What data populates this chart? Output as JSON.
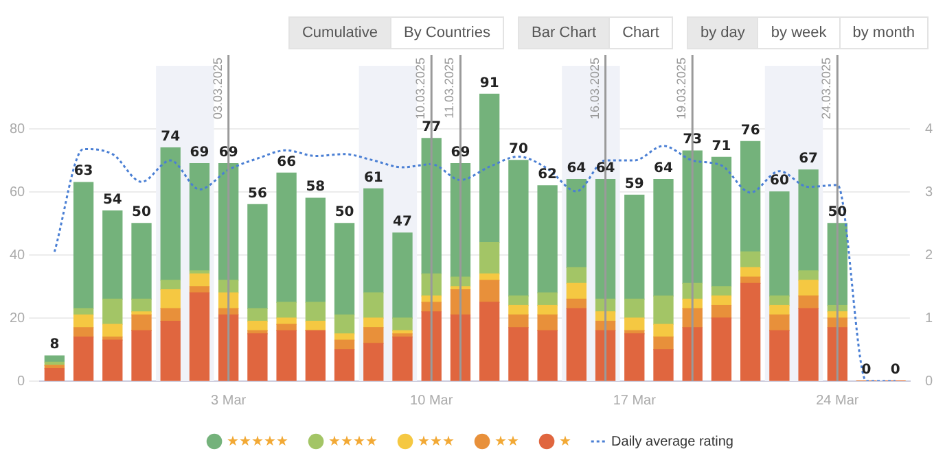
{
  "chart_data": {
    "type": "bar",
    "stacked": true,
    "x": [
      "2025-02-25",
      "2025-02-26",
      "2025-02-27",
      "2025-02-28",
      "2025-03-01",
      "2025-03-02",
      "2025-03-03",
      "2025-03-04",
      "2025-03-05",
      "2025-03-06",
      "2025-03-07",
      "2025-03-08",
      "2025-03-09",
      "2025-03-10",
      "2025-03-11",
      "2025-03-12",
      "2025-03-13",
      "2025-03-14",
      "2025-03-15",
      "2025-03-16",
      "2025-03-17",
      "2025-03-18",
      "2025-03-19",
      "2025-03-20",
      "2025-03-21",
      "2025-03-22",
      "2025-03-23",
      "2025-03-24",
      "2025-03-25",
      "2025-03-26"
    ],
    "xlim": [
      "2025-02-24T12:00",
      "2025-03-26T12:00"
    ],
    "xticks": [
      {
        "value": "2025-03-03",
        "label": "3 Mar"
      },
      {
        "value": "2025-03-10",
        "label": "10 Mar"
      },
      {
        "value": "2025-03-17",
        "label": "17 Mar"
      },
      {
        "value": "2025-03-24",
        "label": "24 Mar"
      }
    ],
    "ylim": [
      0,
      100
    ],
    "yticks": [
      0,
      20,
      40,
      60,
      80
    ],
    "y2lim": [
      0,
      5
    ],
    "y2ticks": [
      0,
      1,
      2,
      3,
      4
    ],
    "series": [
      {
        "name": "★",
        "color": "#e0663f",
        "values": [
          4,
          14,
          13,
          16,
          19,
          28,
          21,
          15,
          16,
          16,
          10,
          12,
          14,
          22,
          21,
          25,
          17,
          16,
          23,
          16,
          15,
          10,
          17,
          20,
          31,
          16,
          23,
          17,
          0,
          0
        ]
      },
      {
        "name": "★★",
        "color": "#e8903a",
        "values": [
          1,
          3,
          1,
          5,
          4,
          2,
          2,
          1,
          2,
          0,
          3,
          5,
          1,
          3,
          8,
          7,
          4,
          5,
          3,
          3,
          1,
          4,
          6,
          4,
          2,
          5,
          4,
          3,
          0,
          0
        ]
      },
      {
        "name": "★★★",
        "color": "#f5c842",
        "values": [
          0,
          4,
          4,
          1,
          6,
          4,
          5,
          3,
          2,
          3,
          2,
          3,
          1,
          2,
          1,
          2,
          3,
          3,
          5,
          3,
          4,
          4,
          3,
          3,
          3,
          3,
          5,
          2,
          0,
          0
        ]
      },
      {
        "name": "★★★★",
        "color": "#a3c566",
        "values": [
          1,
          2,
          8,
          4,
          3,
          1,
          4,
          4,
          5,
          6,
          6,
          8,
          4,
          7,
          3,
          10,
          3,
          4,
          5,
          4,
          6,
          9,
          5,
          3,
          5,
          3,
          3,
          2,
          0,
          0
        ]
      },
      {
        "name": "★★★★★",
        "color": "#74b27b",
        "values": [
          2,
          40,
          28,
          24,
          42,
          34,
          37,
          33,
          41,
          33,
          29,
          33,
          27,
          43,
          36,
          47,
          43,
          34,
          28,
          38,
          33,
          37,
          42,
          41,
          35,
          33,
          32,
          26,
          0,
          0
        ]
      },
      {
        "name": "Daily average rating",
        "type": "line",
        "axis": "y2",
        "color": "#4a7fd4",
        "line_style": "dotted",
        "marker": "none",
        "values": [
          2.05,
          3.68,
          3.6,
          3.16,
          3.5,
          3.04,
          3.35,
          3.53,
          3.66,
          3.57,
          3.6,
          3.5,
          3.39,
          3.44,
          3.19,
          3.4,
          3.56,
          3.37,
          3.01,
          3.5,
          3.5,
          3.73,
          3.5,
          3.42,
          2.99,
          3.33,
          3.08,
          3.11,
          0,
          0
        ]
      }
    ],
    "totals": [
      "8",
      "63",
      "54",
      "50",
      "74",
      "69",
      "69",
      "56",
      "66",
      "58",
      "50",
      "61",
      "47",
      "77",
      "69",
      "91",
      "70",
      "62",
      "64",
      "64",
      "59",
      "64",
      "73",
      "71",
      "76",
      "60",
      "67",
      "50",
      "0",
      "0"
    ],
    "ref_lines": [
      {
        "axis": "x",
        "value": "2025-03-03",
        "label": "03.03.2025",
        "color": "#9a9a9a"
      },
      {
        "axis": "x",
        "value": "2025-03-10",
        "label": "10.03.2025",
        "color": "#9a9a9a"
      },
      {
        "axis": "x",
        "value": "2025-03-11",
        "label": "11.03.2025",
        "color": "#9a9a9a"
      },
      {
        "axis": "x",
        "value": "2025-03-16",
        "label": "16.03.2025",
        "color": "#9a9a9a"
      },
      {
        "axis": "x",
        "value": "2025-03-19",
        "label": "19.03.2025",
        "color": "#9a9a9a"
      },
      {
        "axis": "x",
        "value": "2025-03-24",
        "label": "24.03.2025",
        "color": "#9a9a9a"
      }
    ],
    "bands": [
      {
        "axis": "x",
        "from": "2025-02-28T12:00",
        "to": "2025-03-02T12:00",
        "color": "#f0f2f8"
      },
      {
        "axis": "x",
        "from": "2025-03-07T12:00",
        "to": "2025-03-09T12:00",
        "color": "#f0f2f8"
      },
      {
        "axis": "x",
        "from": "2025-03-14T12:00",
        "to": "2025-03-16T12:00",
        "color": "#f0f2f8"
      },
      {
        "axis": "x",
        "from": "2025-03-21T12:00",
        "to": "2025-03-23T12:00",
        "color": "#f0f2f8"
      }
    ],
    "annotations": [
      "Cumulative",
      "By Countries",
      "Bar Chart",
      "Chart",
      "by day",
      "by week",
      "by month"
    ],
    "grid": "y",
    "legend": "bottom"
  }
}
